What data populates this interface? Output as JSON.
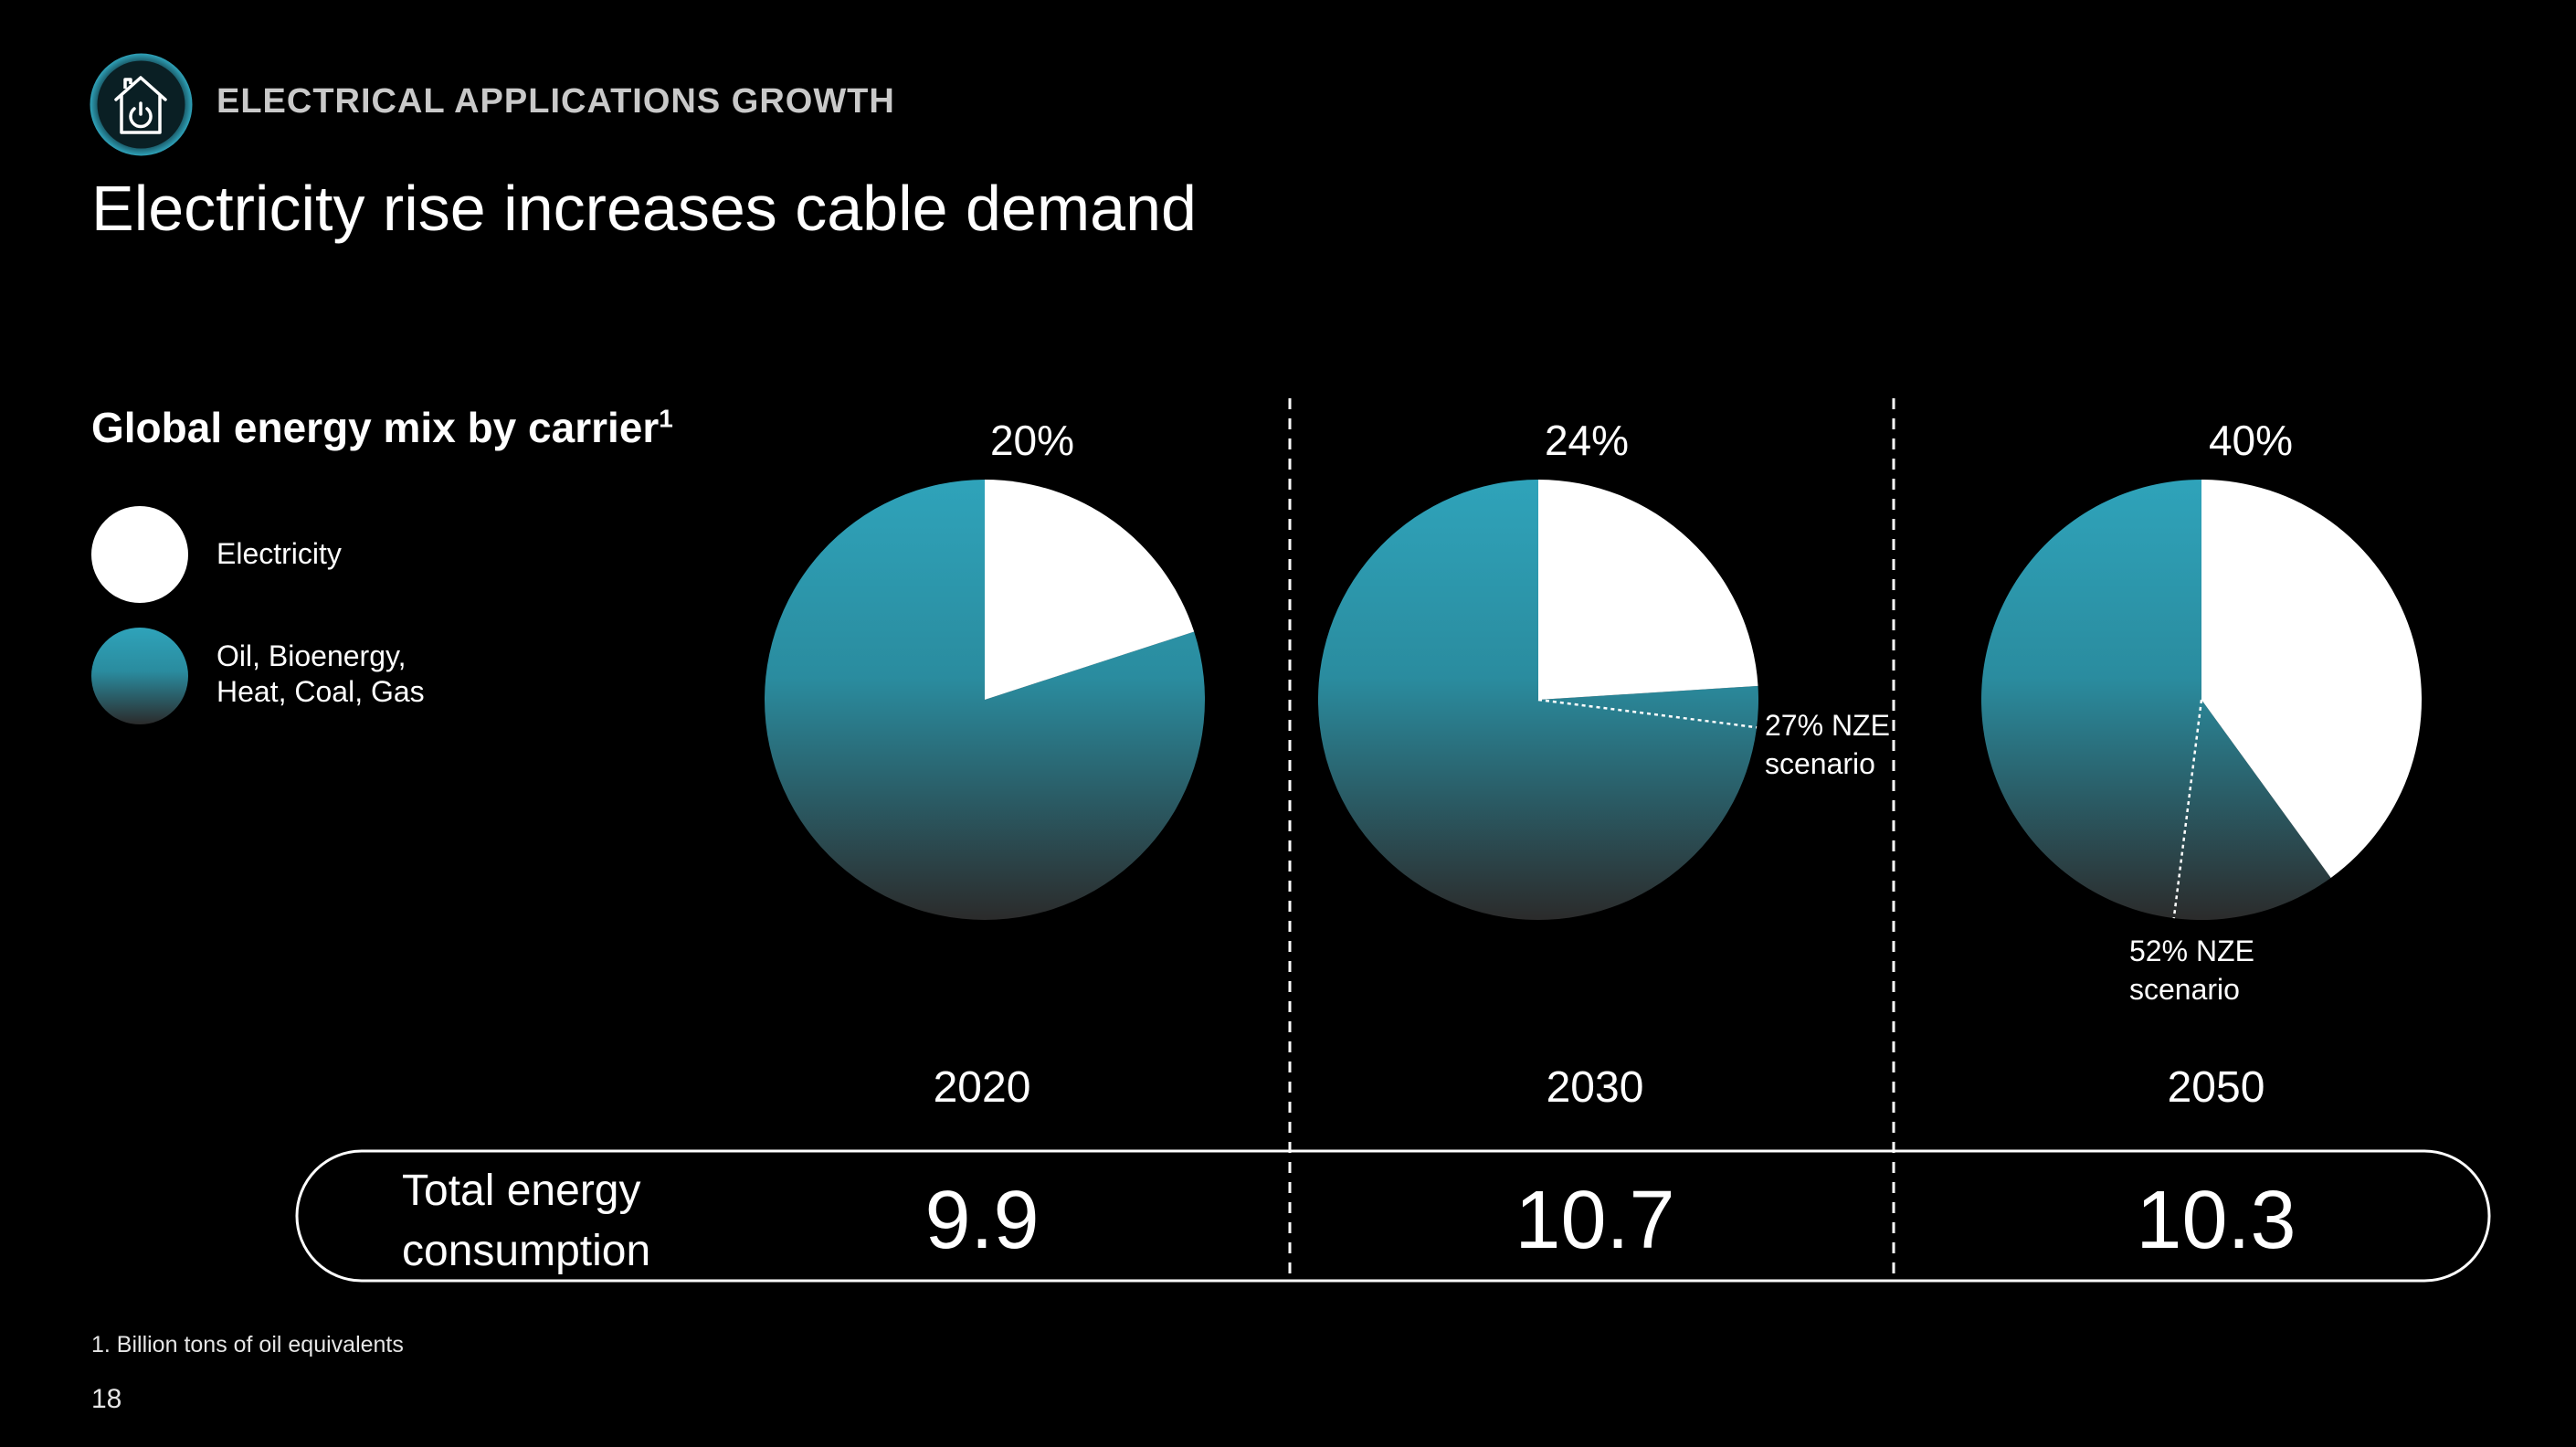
{
  "header": {
    "section_label": "ELECTRICAL APPLICATIONS GROWTH",
    "title": "Electricity rise increases cable demand",
    "icon": "house-power-icon"
  },
  "legend": {
    "title": "Global energy mix by carrier",
    "title_footnote_marker": "1",
    "items": [
      {
        "label": "Electricity",
        "color": "#ffffff"
      },
      {
        "label": "Oil, Bioenergy, Heat, Coal, Gas",
        "color": "#2fa3ba"
      }
    ]
  },
  "chart_data": {
    "type": "pie",
    "series_colors": {
      "electricity": "#ffffff",
      "other_top": "#2fa3ba",
      "other_bottom": "#2b2b2b"
    },
    "pies": [
      {
        "year": "2020",
        "electricity_share": 20,
        "label": "20%",
        "total": "9.9"
      },
      {
        "year": "2030",
        "electricity_share": 24,
        "label": "24%",
        "total": "10.7",
        "nze_share": 27,
        "nze_label": [
          "27% NZE",
          "scenario"
        ]
      },
      {
        "year": "2050",
        "electricity_share": 40,
        "label": "40%",
        "total": "10.3",
        "nze_share": 52,
        "nze_label": [
          "52% NZE",
          "scenario"
        ]
      }
    ],
    "total_row_label": "Total energy consumption"
  },
  "footer": {
    "footnote": "1. Billion tons of oil equivalents",
    "page_number": "18"
  }
}
